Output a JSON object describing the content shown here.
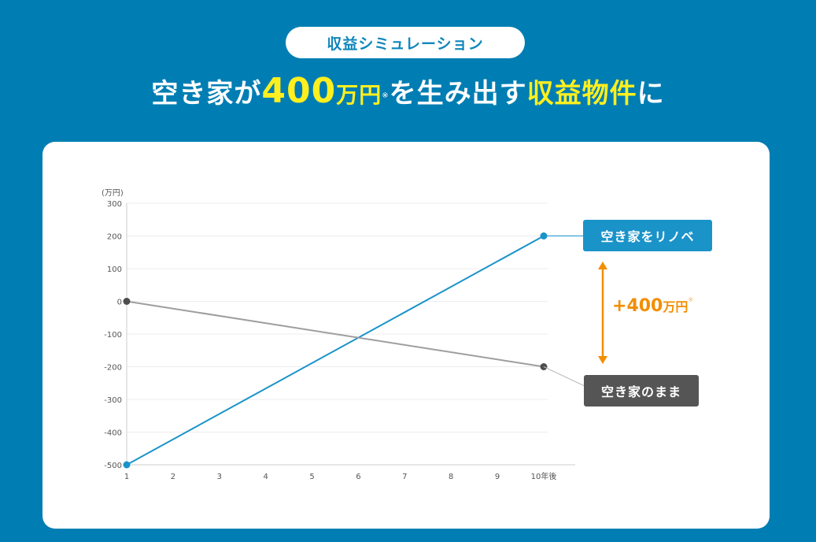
{
  "badge": "収益シミュレーション",
  "headline": {
    "part1": "空き家が",
    "amount": "400",
    "unit": "万円",
    "note_mark": "※",
    "part2": "を生み出す",
    "highlight": "収益物件",
    "part3": "に"
  },
  "chart_data": {
    "type": "line",
    "y_unit_label": "(万円)",
    "categories": [
      "1",
      "2",
      "3",
      "4",
      "5",
      "6",
      "7",
      "8",
      "9",
      "10年後"
    ],
    "yticks": [
      300,
      200,
      100,
      0,
      -100,
      -200,
      -300,
      -400,
      -500
    ],
    "ylim": [
      -500,
      300
    ],
    "grid": true,
    "series": [
      {
        "name": "空き家をリノベ",
        "color": "#1a93c9",
        "x": [
          1,
          10
        ],
        "values": [
          -500,
          200
        ]
      },
      {
        "name": "空き家のまま",
        "color": "#9e9e9e",
        "x": [
          1,
          10
        ],
        "values": [
          0,
          -200
        ]
      }
    ],
    "annotation": {
      "prefix": "+",
      "value": "400",
      "unit": "万円",
      "mark": "※",
      "color": "#f28e00"
    }
  },
  "colors": {
    "background": "#007eb3",
    "accent_yellow": "#ffef1f",
    "renovate_box": "#1a93c9",
    "asis_box": "#555555",
    "arrow": "#f28e00"
  }
}
